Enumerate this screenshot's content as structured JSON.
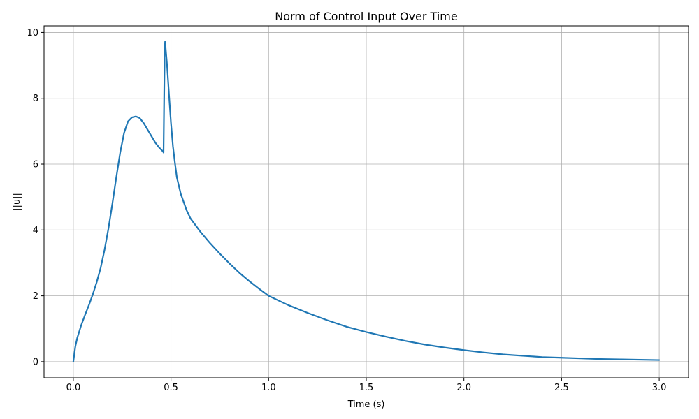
{
  "chart_data": {
    "type": "line",
    "title": "Norm of Control Input Over Time",
    "xlabel": "Time (s)",
    "ylabel": "||u||",
    "xlim": [
      -0.15,
      3.15
    ],
    "ylim": [
      -0.49,
      10.2
    ],
    "xticks": [
      0.0,
      0.5,
      1.0,
      1.5,
      2.0,
      2.5,
      3.0
    ],
    "xtick_labels": [
      "0.0",
      "0.5",
      "1.0",
      "1.5",
      "2.0",
      "2.5",
      "3.0"
    ],
    "yticks": [
      0,
      2,
      4,
      6,
      8,
      10
    ],
    "ytick_labels": [
      "0",
      "2",
      "4",
      "6",
      "8",
      "10"
    ],
    "grid": true,
    "color": "#1f77b4",
    "series": [
      {
        "x": [
          0.0,
          0.01,
          0.02,
          0.04,
          0.06,
          0.08,
          0.1,
          0.12,
          0.14,
          0.16,
          0.18,
          0.2,
          0.22,
          0.24,
          0.26,
          0.28,
          0.3,
          0.32,
          0.34,
          0.36,
          0.38,
          0.4,
          0.42,
          0.44,
          0.46,
          0.462,
          0.465,
          0.468,
          0.47,
          0.48,
          0.49,
          0.5,
          0.51,
          0.52,
          0.53,
          0.55,
          0.58,
          0.6,
          0.65,
          0.7,
          0.75,
          0.8,
          0.85,
          0.9,
          0.95,
          1.0,
          1.1,
          1.2,
          1.3,
          1.4,
          1.5,
          1.6,
          1.7,
          1.8,
          1.9,
          2.0,
          2.1,
          2.2,
          2.3,
          2.4,
          2.5,
          2.6,
          2.7,
          2.8,
          2.9,
          3.0
        ],
        "y": [
          0.0,
          0.45,
          0.72,
          1.1,
          1.42,
          1.72,
          2.05,
          2.42,
          2.85,
          3.4,
          4.05,
          4.8,
          5.6,
          6.35,
          6.95,
          7.3,
          7.42,
          7.45,
          7.4,
          7.25,
          7.05,
          6.85,
          6.65,
          6.5,
          6.38,
          6.35,
          8.0,
          9.5,
          9.72,
          9.0,
          8.1,
          7.25,
          6.55,
          6.05,
          5.6,
          5.1,
          4.6,
          4.35,
          3.95,
          3.6,
          3.28,
          2.98,
          2.7,
          2.45,
          2.22,
          2.0,
          1.72,
          1.48,
          1.26,
          1.06,
          0.9,
          0.76,
          0.63,
          0.52,
          0.43,
          0.35,
          0.28,
          0.22,
          0.18,
          0.14,
          0.12,
          0.1,
          0.08,
          0.07,
          0.06,
          0.05
        ]
      }
    ]
  }
}
